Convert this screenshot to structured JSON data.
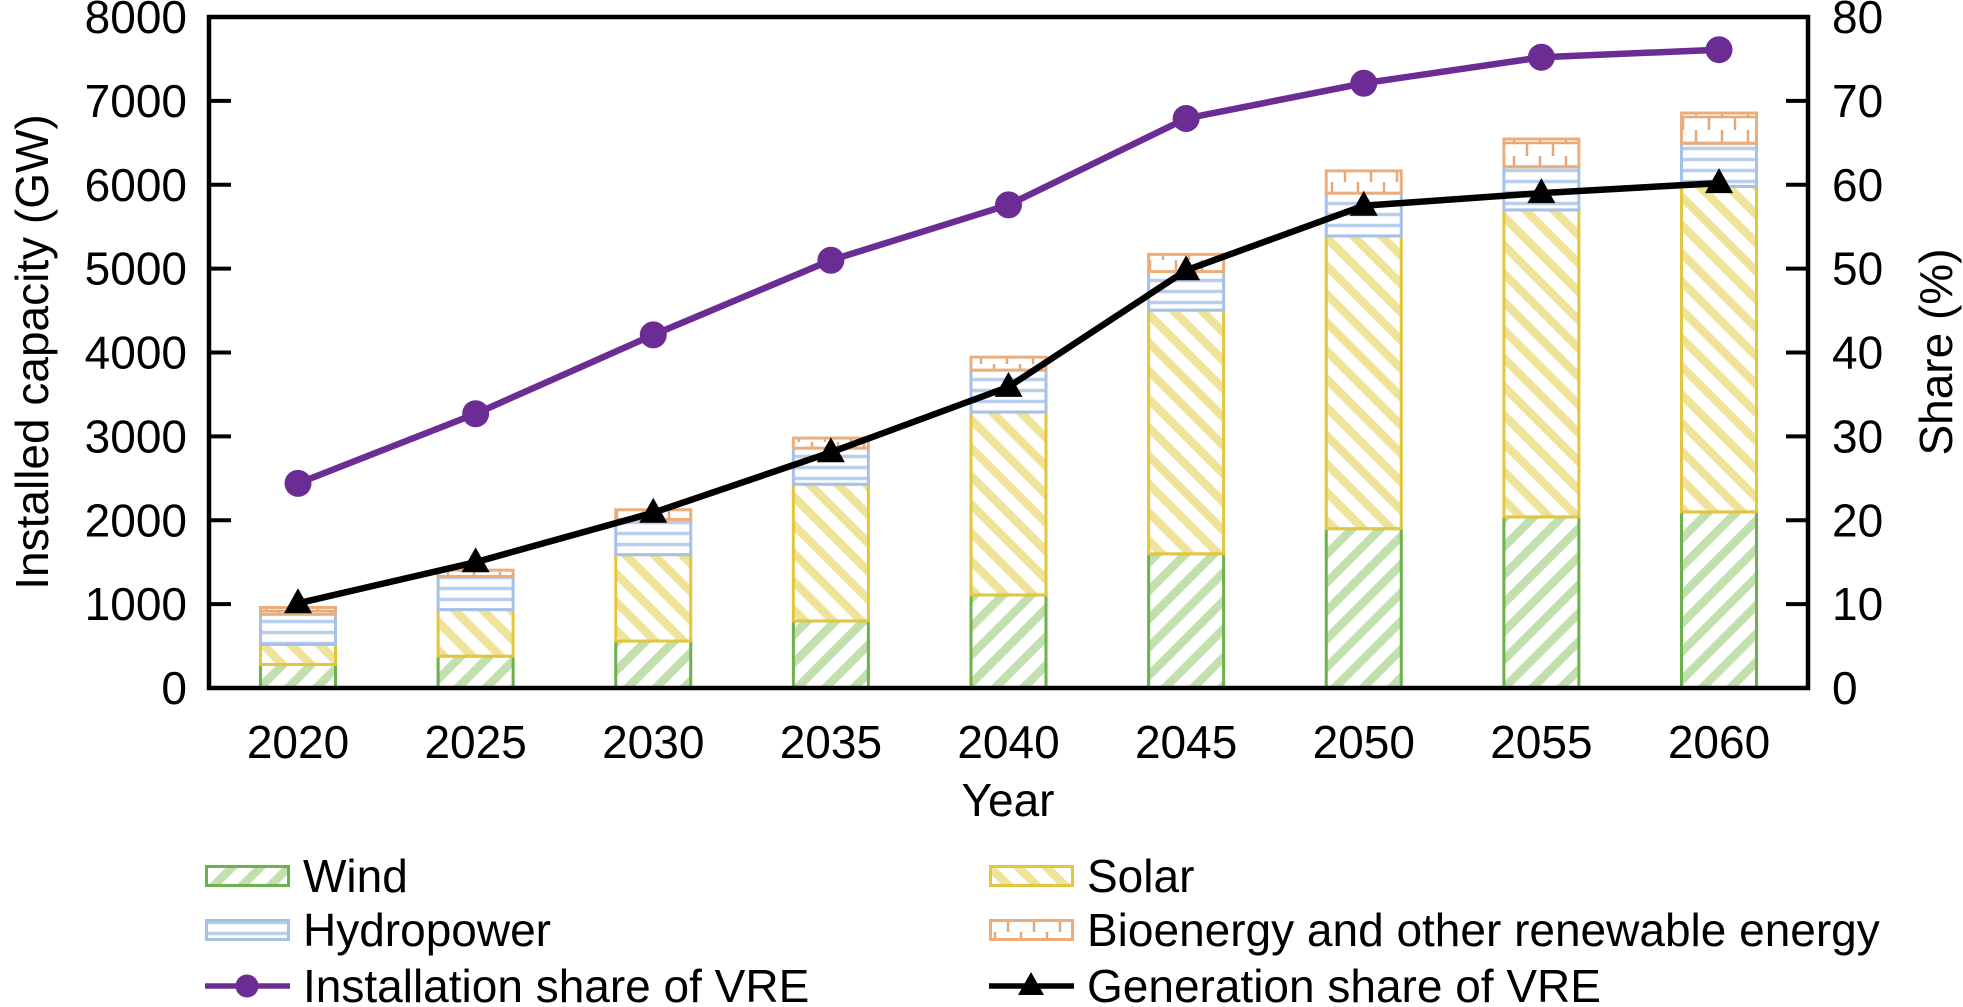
{
  "chart_data": {
    "type": "bar+line",
    "x_axis": {
      "label": "Year",
      "categories": [
        "2020",
        "2025",
        "2030",
        "2035",
        "2040",
        "2045",
        "2050",
        "2055",
        "2060"
      ]
    },
    "left_axis": {
      "label": "Installed capacity (GW)",
      "min": 0,
      "max": 8000,
      "step": 1000
    },
    "right_axis": {
      "label": "Share (%)",
      "min": 0,
      "max": 80,
      "step": 10
    },
    "bar_series": [
      {
        "name": "Wind",
        "axis": "left",
        "hatch": "diagonal-up",
        "border_color": "#6CB14B",
        "hatch_color": "#C2E0AE",
        "values": [
          280,
          380,
          560,
          800,
          1110,
          1600,
          1900,
          2040,
          2100
        ]
      },
      {
        "name": "Solar",
        "axis": "left",
        "hatch": "diagonal-down",
        "border_color": "#E3C63F",
        "hatch_color": "#EFE39A",
        "values": [
          240,
          555,
          1030,
          1630,
          2180,
          2905,
          3490,
          3660,
          3880
        ]
      },
      {
        "name": "Hydropower",
        "axis": "left",
        "hatch": "horizontal-lines",
        "border_color": "#A6C1E7",
        "hatch_color": "#B9CDED",
        "values": [
          360,
          395,
          420,
          430,
          500,
          460,
          510,
          515,
          515
        ]
      },
      {
        "name": "Bioenergy and other renewable energy",
        "axis": "left",
        "hatch": "comb",
        "border_color": "#EBAD7C",
        "hatch_color": "#E5A878",
        "values": [
          80,
          75,
          115,
          120,
          155,
          205,
          265,
          330,
          360
        ]
      }
    ],
    "line_series": [
      {
        "name": "Installation share of VRE",
        "axis": "right",
        "marker": "circle",
        "color": "#6B2D94",
        "values": [
          24.4,
          32.7,
          42.1,
          51.0,
          57.6,
          67.9,
          72.1,
          75.2,
          76.1
        ]
      },
      {
        "name": "Generation share of VRE",
        "axis": "right",
        "marker": "triangle",
        "color": "#000000",
        "values": [
          10.1,
          15.0,
          20.9,
          28.1,
          35.9,
          49.8,
          57.5,
          59.0,
          60.2
        ]
      }
    ],
    "legend": {
      "position": "bottom",
      "columns": 2
    }
  }
}
